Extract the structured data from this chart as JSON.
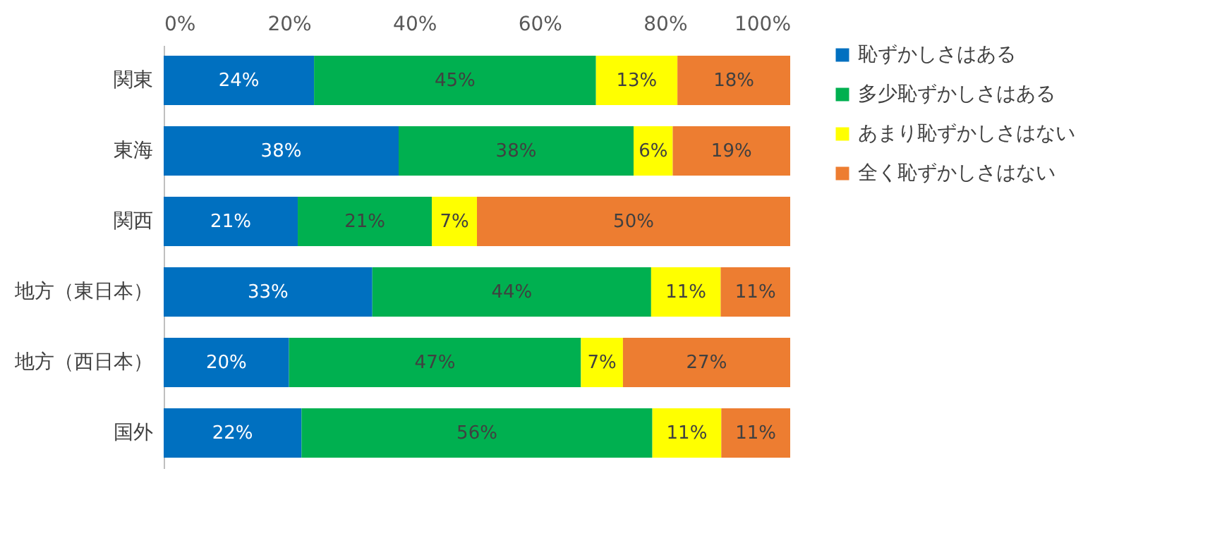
{
  "chart_data": {
    "type": "bar",
    "orientation": "horizontal",
    "stacked": true,
    "categories": [
      "関東",
      "東海",
      "関西",
      "地方（東日本）",
      "地方（西日本）",
      "国外"
    ],
    "series": [
      {
        "name": "恥ずかしさはある",
        "color": "#0070c0",
        "values": [
          24,
          37.5,
          21.4,
          33.3,
          20,
          22
        ],
        "value_labels": [
          "24%",
          "38%",
          "21%",
          "33%",
          "20%",
          "22%"
        ]
      },
      {
        "name": "多少恥ずかしさはある",
        "color": "#00b050",
        "values": [
          45,
          37.5,
          21.4,
          44.5,
          46.6,
          56
        ],
        "value_labels": [
          "45%",
          "38%",
          "21%",
          "44%",
          "47%",
          "56%"
        ]
      },
      {
        "name": "あまり恥ずかしさはない",
        "color": "#ffff00",
        "values": [
          13,
          6.25,
          7.2,
          11.1,
          6.7,
          11
        ],
        "value_labels": [
          "13%",
          "6%",
          "7%",
          "11%",
          "7%",
          "11%"
        ]
      },
      {
        "name": "全く恥ずかしさはない",
        "color": "#ed7d31",
        "values": [
          18,
          18.75,
          50,
          11.1,
          26.7,
          11
        ],
        "value_labels": [
          "18%",
          "19%",
          "50%",
          "11%",
          "27%",
          "11%"
        ]
      }
    ],
    "xlim": [
      0,
      100
    ],
    "xticks": [
      {
        "value": 0,
        "label": "0%"
      },
      {
        "value": 20,
        "label": "20%"
      },
      {
        "value": 40,
        "label": "40%"
      },
      {
        "value": 60,
        "label": "60%"
      },
      {
        "value": 80,
        "label": "80%"
      },
      {
        "value": 100,
        "label": "100%"
      }
    ],
    "grid": false,
    "legend": "right"
  }
}
